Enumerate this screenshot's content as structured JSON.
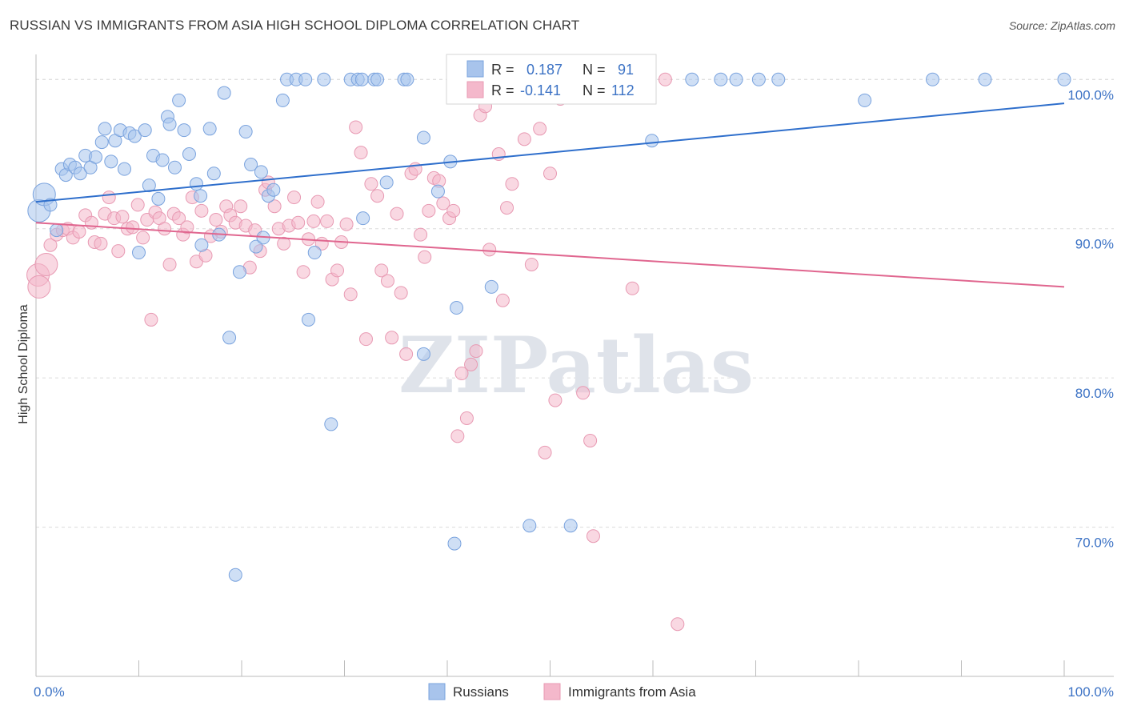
{
  "title": "RUSSIAN VS IMMIGRANTS FROM ASIA HIGH SCHOOL DIPLOMA CORRELATION CHART",
  "source": "Source: ZipAtlas.com",
  "watermark": "ZIPatlas",
  "chart_data": {
    "type": "scatter",
    "ylabel": "High School Diploma",
    "xlim": [
      0,
      100
    ],
    "ylim": [
      60,
      102
    ],
    "x_tick_labels": [
      "0.0%",
      "100.0%"
    ],
    "y_ticks": [
      {
        "value": 100,
        "label": "100.0%"
      },
      {
        "value": 90,
        "label": "90.0%"
      },
      {
        "value": 80,
        "label": "80.0%"
      },
      {
        "value": 70,
        "label": "70.0%"
      }
    ],
    "legend": {
      "r_label": "R =",
      "n_label": "N =",
      "rows": [
        {
          "r": "0.187",
          "n": "91",
          "color": "#a8c4ec"
        },
        {
          "r": "-0.141",
          "n": "112",
          "color": "#f4b8cb"
        }
      ]
    },
    "series": [
      {
        "name": "Russians",
        "color": "#a8c4ec",
        "line_color": "#2f6fcc",
        "trend": {
          "x": [
            0,
            100
          ],
          "y": [
            91.8,
            98.4
          ]
        },
        "points": [
          [
            0.3,
            91.2
          ],
          [
            0.8,
            92.3
          ],
          [
            1.4,
            91.6
          ],
          [
            2.0,
            89.9
          ],
          [
            2.5,
            94.0
          ],
          [
            2.9,
            93.6
          ],
          [
            3.3,
            94.3
          ],
          [
            3.8,
            94.1
          ],
          [
            4.3,
            93.7
          ],
          [
            4.8,
            94.9
          ],
          [
            5.3,
            94.1
          ],
          [
            5.8,
            94.8
          ],
          [
            6.4,
            95.8
          ],
          [
            6.7,
            96.7
          ],
          [
            7.3,
            94.5
          ],
          [
            7.7,
            95.9
          ],
          [
            8.2,
            96.6
          ],
          [
            8.6,
            94.0
          ],
          [
            9.1,
            96.4
          ],
          [
            9.6,
            96.2
          ],
          [
            10.0,
            88.4
          ],
          [
            10.6,
            96.6
          ],
          [
            11.0,
            92.9
          ],
          [
            11.4,
            94.9
          ],
          [
            11.9,
            92.0
          ],
          [
            12.3,
            94.6
          ],
          [
            12.8,
            97.5
          ],
          [
            13.0,
            97.0
          ],
          [
            13.5,
            94.1
          ],
          [
            13.9,
            98.6
          ],
          [
            14.4,
            96.6
          ],
          [
            14.9,
            95.0
          ],
          [
            15.6,
            93.0
          ],
          [
            16.0,
            92.2
          ],
          [
            16.1,
            88.9
          ],
          [
            16.9,
            96.7
          ],
          [
            17.3,
            93.7
          ],
          [
            17.8,
            89.6
          ],
          [
            18.3,
            99.1
          ],
          [
            18.8,
            82.7
          ],
          [
            19.4,
            66.8
          ],
          [
            19.8,
            87.1
          ],
          [
            20.4,
            96.5
          ],
          [
            20.9,
            94.3
          ],
          [
            21.4,
            88.8
          ],
          [
            21.9,
            93.8
          ],
          [
            22.6,
            92.2
          ],
          [
            23.1,
            92.6
          ],
          [
            22.1,
            89.4
          ],
          [
            24.0,
            98.6
          ],
          [
            24.4,
            100
          ],
          [
            25.3,
            100
          ],
          [
            26.2,
            100
          ],
          [
            26.5,
            83.9
          ],
          [
            27.1,
            88.4
          ],
          [
            28.0,
            100
          ],
          [
            28.7,
            76.9
          ],
          [
            30.6,
            100
          ],
          [
            31.3,
            100
          ],
          [
            31.7,
            100
          ],
          [
            31.8,
            90.7
          ],
          [
            32.9,
            100
          ],
          [
            33.2,
            100
          ],
          [
            34.1,
            93.1
          ],
          [
            35.8,
            100
          ],
          [
            36.1,
            100
          ],
          [
            37.7,
            96.1
          ],
          [
            37.7,
            81.6
          ],
          [
            39.1,
            92.5
          ],
          [
            40.3,
            94.5
          ],
          [
            40.7,
            68.9
          ],
          [
            40.9,
            84.7
          ],
          [
            42.5,
            100
          ],
          [
            44.3,
            86.1
          ],
          [
            46.7,
            100
          ],
          [
            48.0,
            70.1
          ],
          [
            49.0,
            100
          ],
          [
            52.0,
            70.1
          ],
          [
            56.3,
            100
          ],
          [
            56.4,
            100
          ],
          [
            58.2,
            100
          ],
          [
            59.9,
            95.9
          ],
          [
            63.8,
            100
          ],
          [
            66.6,
            100
          ],
          [
            68.1,
            100
          ],
          [
            70.3,
            100
          ],
          [
            72.2,
            100
          ],
          [
            80.6,
            98.6
          ],
          [
            87.2,
            100
          ],
          [
            92.3,
            100
          ],
          [
            100,
            100
          ]
        ]
      },
      {
        "name": "Immigrants from Asia",
        "color": "#f4b8cb",
        "line_color": "#e0668f",
        "trend": {
          "x": [
            0,
            100
          ],
          "y": [
            90.4,
            86.1
          ]
        },
        "points": [
          [
            0.2,
            86.9
          ],
          [
            0.3,
            86.1
          ],
          [
            1.0,
            87.6
          ],
          [
            1.4,
            88.9
          ],
          [
            2.0,
            89.6
          ],
          [
            2.6,
            89.9
          ],
          [
            3.1,
            90.0
          ],
          [
            3.6,
            89.4
          ],
          [
            4.2,
            89.8
          ],
          [
            4.8,
            90.9
          ],
          [
            5.4,
            90.4
          ],
          [
            5.7,
            89.1
          ],
          [
            6.3,
            89.0
          ],
          [
            6.7,
            91.0
          ],
          [
            7.1,
            92.1
          ],
          [
            7.6,
            90.7
          ],
          [
            8.0,
            88.5
          ],
          [
            8.4,
            90.8
          ],
          [
            8.9,
            90.0
          ],
          [
            9.4,
            90.1
          ],
          [
            9.9,
            91.6
          ],
          [
            10.4,
            89.4
          ],
          [
            10.8,
            90.6
          ],
          [
            11.2,
            83.9
          ],
          [
            11.6,
            91.1
          ],
          [
            12.0,
            90.7
          ],
          [
            12.5,
            90.0
          ],
          [
            13.0,
            87.6
          ],
          [
            13.4,
            91.0
          ],
          [
            13.9,
            90.7
          ],
          [
            14.3,
            89.6
          ],
          [
            14.7,
            90.1
          ],
          [
            15.2,
            92.1
          ],
          [
            15.6,
            87.8
          ],
          [
            16.1,
            91.2
          ],
          [
            16.5,
            88.2
          ],
          [
            17.0,
            89.5
          ],
          [
            17.5,
            90.6
          ],
          [
            18.0,
            89.8
          ],
          [
            18.5,
            91.5
          ],
          [
            18.9,
            90.9
          ],
          [
            19.4,
            90.4
          ],
          [
            19.9,
            91.5
          ],
          [
            20.4,
            90.2
          ],
          [
            20.8,
            87.4
          ],
          [
            21.3,
            89.9
          ],
          [
            21.8,
            88.5
          ],
          [
            22.3,
            92.6
          ],
          [
            22.6,
            93.1
          ],
          [
            23.2,
            91.5
          ],
          [
            23.6,
            90.0
          ],
          [
            24.1,
            89.0
          ],
          [
            24.6,
            90.2
          ],
          [
            25.1,
            92.1
          ],
          [
            25.5,
            90.4
          ],
          [
            26.0,
            87.1
          ],
          [
            26.5,
            89.3
          ],
          [
            27.0,
            90.5
          ],
          [
            27.4,
            91.8
          ],
          [
            27.8,
            89.0
          ],
          [
            28.3,
            90.5
          ],
          [
            28.8,
            86.6
          ],
          [
            29.3,
            87.2
          ],
          [
            29.7,
            89.1
          ],
          [
            30.2,
            90.3
          ],
          [
            30.6,
            85.6
          ],
          [
            31.1,
            96.8
          ],
          [
            31.6,
            95.1
          ],
          [
            32.1,
            82.6
          ],
          [
            32.6,
            93.0
          ],
          [
            33.2,
            92.2
          ],
          [
            33.6,
            87.2
          ],
          [
            34.2,
            86.5
          ],
          [
            34.6,
            82.7
          ],
          [
            35.1,
            91.0
          ],
          [
            35.5,
            85.7
          ],
          [
            36.0,
            81.6
          ],
          [
            36.5,
            93.7
          ],
          [
            36.9,
            94.0
          ],
          [
            37.4,
            89.6
          ],
          [
            37.8,
            88.1
          ],
          [
            38.2,
            91.2
          ],
          [
            38.7,
            93.4
          ],
          [
            39.2,
            93.2
          ],
          [
            39.6,
            91.7
          ],
          [
            40.2,
            90.7
          ],
          [
            40.6,
            91.2
          ],
          [
            41.0,
            76.1
          ],
          [
            41.4,
            80.3
          ],
          [
            41.9,
            77.3
          ],
          [
            42.3,
            80.9
          ],
          [
            42.8,
            81.8
          ],
          [
            43.2,
            97.6
          ],
          [
            43.7,
            98.2
          ],
          [
            44.1,
            88.6
          ],
          [
            45.0,
            95.0
          ],
          [
            45.4,
            85.2
          ],
          [
            45.8,
            91.4
          ],
          [
            46.3,
            93.0
          ],
          [
            47.5,
            96.0
          ],
          [
            48.2,
            87.6
          ],
          [
            49.0,
            96.7
          ],
          [
            49.5,
            75.0
          ],
          [
            50.0,
            93.7
          ],
          [
            50.5,
            78.5
          ],
          [
            51.0,
            98.7
          ],
          [
            53.2,
            79.0
          ],
          [
            53.9,
            75.8
          ],
          [
            54.2,
            69.4
          ],
          [
            58.0,
            86.0
          ],
          [
            61.2,
            100
          ],
          [
            62.4,
            63.5
          ]
        ]
      }
    ],
    "bottom_legend": [
      "Russians",
      "Immigrants from Asia"
    ]
  }
}
